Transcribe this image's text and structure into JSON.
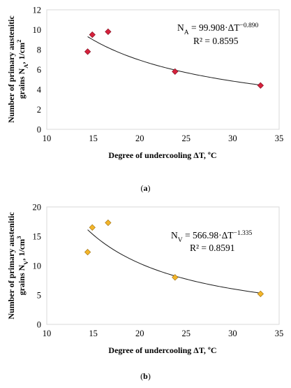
{
  "chart_data": [
    {
      "type": "scatter",
      "panel_label": "a",
      "xlabel": "Degree of undercooling ΔT, ºC",
      "ylabel_line1": "Number of primary austenitic",
      "ylabel_line2": "grains N",
      "ylabel_sub": "A",
      "ylabel_unit": ", 1/cm",
      "ylabel_unit_sup": "2",
      "xlim": [
        10,
        35
      ],
      "ylim": [
        0,
        12
      ],
      "xticks": [
        10,
        15,
        20,
        25,
        30,
        35
      ],
      "yticks": [
        0,
        2,
        4,
        6,
        8,
        10,
        12
      ],
      "grid": false,
      "marker_color": "#d6213c",
      "marker_edge": "#7a0a1a",
      "points": [
        {
          "x": 14.4,
          "y": 7.8
        },
        {
          "x": 14.9,
          "y": 9.5
        },
        {
          "x": 16.6,
          "y": 9.8
        },
        {
          "x": 23.8,
          "y": 5.8
        },
        {
          "x": 33.0,
          "y": 4.4
        }
      ],
      "trend": {
        "coef": 99.908,
        "exp": -0.89,
        "x_from": 14.4,
        "x_to": 33.0
      },
      "equation": {
        "lhs": "N",
        "lhs_sub": "A",
        "rhs": " = 99.908·ΔT",
        "rhs_sup": "−0.890",
        "r2_label": "R² = 0.8595"
      }
    },
    {
      "type": "scatter",
      "panel_label": "b",
      "xlabel": "Degree of undercooling ΔT, ºC",
      "ylabel_line1": "Number of primary austenitic",
      "ylabel_line2": "grains N",
      "ylabel_sub": "V",
      "ylabel_unit": ", 1/cm",
      "ylabel_unit_sup": "3",
      "xlim": [
        10,
        35
      ],
      "ylim": [
        0,
        20
      ],
      "xticks": [
        10,
        15,
        20,
        25,
        30,
        35
      ],
      "yticks": [
        0,
        5,
        10,
        15,
        20
      ],
      "grid": false,
      "marker_color": "#f3b52a",
      "marker_edge": "#9c6d0a",
      "points": [
        {
          "x": 14.4,
          "y": 12.3
        },
        {
          "x": 14.9,
          "y": 16.5
        },
        {
          "x": 16.6,
          "y": 17.3
        },
        {
          "x": 23.8,
          "y": 8.0
        },
        {
          "x": 33.0,
          "y": 5.2
        }
      ],
      "trend": {
        "coef": 566.98,
        "exp": -1.335,
        "x_from": 14.4,
        "x_to": 33.0
      },
      "equation": {
        "lhs": "N",
        "lhs_sub": "V",
        "rhs": " = 566.98·ΔT",
        "rhs_sup": "−1.335",
        "r2_label": "R² = 0.8591"
      }
    }
  ]
}
